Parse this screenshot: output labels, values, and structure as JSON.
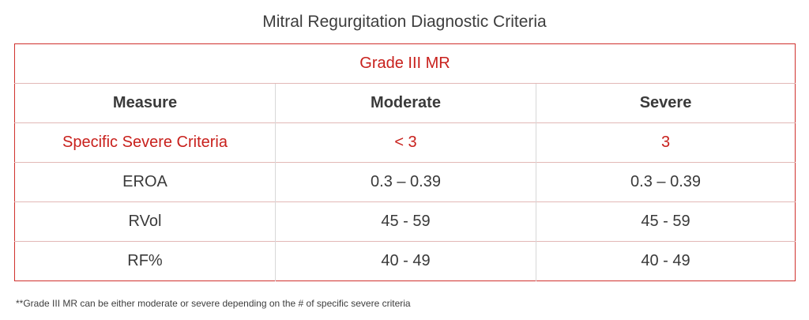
{
  "title": "Mitral Regurgitation Diagnostic Criteria",
  "table": {
    "grade_label": "Grade III MR",
    "headers": [
      "Measure",
      "Moderate",
      "Severe"
    ],
    "specific_row": {
      "label": "Specific Severe Criteria",
      "moderate": "< 3",
      "severe": "3"
    },
    "rows": [
      {
        "measure": "EROA",
        "moderate": "0.3 – 0.39",
        "severe": "0.3 – 0.39"
      },
      {
        "measure": "RVol",
        "moderate": "45 - 59",
        "severe": "45 - 59"
      },
      {
        "measure": "RF%",
        "moderate": "40 - 49",
        "severe": "40 - 49"
      }
    ]
  },
  "footnote": "**Grade III MR can be either moderate or severe depending on the # of specific severe criteria",
  "colors": {
    "accent_red": "#c8201c",
    "border_red": "#d0312d",
    "text": "#3a3a3a"
  }
}
